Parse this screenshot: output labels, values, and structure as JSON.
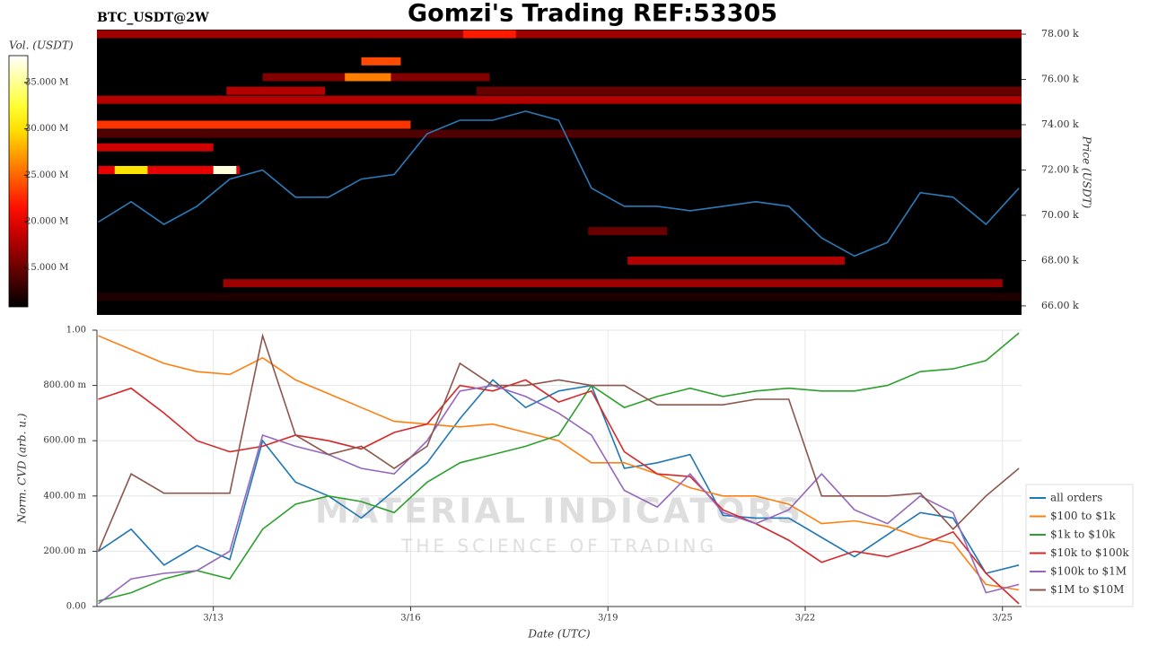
{
  "chart_data": [
    {
      "type": "heatmap",
      "title": "Gomzi's Trading REF:53305",
      "subtitle": "BTC_USDT@2W",
      "ylabel": "Price (USDT)",
      "xlim": [
        11.23,
        25.29
      ],
      "ylim": [
        65.6,
        78.2
      ],
      "yticks": [
        {
          "value": 66,
          "label": "66.00 k"
        },
        {
          "value": 68,
          "label": "68.00 k"
        },
        {
          "value": 70,
          "label": "70.00 k"
        },
        {
          "value": 72,
          "label": "72.00 k"
        },
        {
          "value": 74,
          "label": "74.00 k"
        },
        {
          "value": 76,
          "label": "76.00 k"
        },
        {
          "value": 78,
          "label": "78.00 k"
        }
      ],
      "colorbar": {
        "label": "Vol. (USDT)",
        "lim": [
          10.8,
          37.9
        ],
        "colormap": "hot",
        "ticks": [
          {
            "value": 15,
            "label": "15.000 M"
          },
          {
            "value": 20,
            "label": "20.000 M"
          },
          {
            "value": 25,
            "label": "25.000 M"
          },
          {
            "value": 30,
            "label": "30.000 M"
          },
          {
            "value": 35,
            "label": "35.000 M"
          }
        ]
      },
      "segments": [
        {
          "price": 78.0,
          "start": 11.23,
          "end": 25.29,
          "volume": 17
        },
        {
          "price": 78.0,
          "start": 16.8,
          "end": 17.6,
          "volume": 22
        },
        {
          "price": 76.8,
          "start": 15.25,
          "end": 15.85,
          "volume": 24
        },
        {
          "price": 76.1,
          "start": 13.75,
          "end": 17.2,
          "volume": 16
        },
        {
          "price": 76.1,
          "start": 15.0,
          "end": 15.7,
          "volume": 26
        },
        {
          "price": 75.5,
          "start": 13.2,
          "end": 14.7,
          "volume": 18
        },
        {
          "price": 75.5,
          "start": 17.0,
          "end": 25.29,
          "volume": 15
        },
        {
          "price": 75.1,
          "start": 11.23,
          "end": 25.29,
          "volume": 18
        },
        {
          "price": 74.0,
          "start": 11.23,
          "end": 16.0,
          "volume": 23
        },
        {
          "price": 73.6,
          "start": 11.23,
          "end": 25.29,
          "volume": 14
        },
        {
          "price": 73.0,
          "start": 11.23,
          "end": 13.0,
          "volume": 19
        },
        {
          "price": 72.0,
          "start": 11.25,
          "end": 13.4,
          "volume": 20
        },
        {
          "price": 72.0,
          "start": 11.5,
          "end": 12.0,
          "volume": 30
        },
        {
          "price": 72.0,
          "start": 13.0,
          "end": 13.35,
          "volume": 37
        },
        {
          "price": 69.3,
          "start": 18.7,
          "end": 19.9,
          "volume": 15
        },
        {
          "price": 68.0,
          "start": 19.3,
          "end": 22.6,
          "volume": 18
        },
        {
          "price": 67.0,
          "start": 13.15,
          "end": 25.0,
          "volume": 17
        },
        {
          "price": 66.4,
          "start": 11.23,
          "end": 25.29,
          "volume": 12
        }
      ],
      "price_line": {
        "color": "#2b7bba",
        "x": [
          11.25,
          11.75,
          12.25,
          12.75,
          13.25,
          13.75,
          14.25,
          14.75,
          15.25,
          15.75,
          16.25,
          16.75,
          17.25,
          17.75,
          18.25,
          18.75,
          19.25,
          19.75,
          20.25,
          20.75,
          21.25,
          21.75,
          22.25,
          22.75,
          23.25,
          23.75,
          24.25,
          24.75,
          25.25
        ],
        "values": [
          69.7,
          70.6,
          69.6,
          70.4,
          71.6,
          72.0,
          70.8,
          70.8,
          71.6,
          71.8,
          73.6,
          74.2,
          74.2,
          74.6,
          74.2,
          71.2,
          70.4,
          70.4,
          70.2,
          70.4,
          70.6,
          70.4,
          69.0,
          68.2,
          68.8,
          71.0,
          70.8,
          69.6,
          71.2
        ]
      }
    },
    {
      "type": "line",
      "xlabel": "Date (UTC)",
      "ylabel": "Norm. CVD (arb. u.)",
      "xlim": [
        11.23,
        25.29
      ],
      "xticks": [
        {
          "value": 13,
          "label": "3/13"
        },
        {
          "value": 16,
          "label": "3/16"
        },
        {
          "value": 19,
          "label": "3/19"
        },
        {
          "value": 22,
          "label": "3/22"
        },
        {
          "value": 25,
          "label": "3/25"
        }
      ],
      "ylim": [
        0,
        1
      ],
      "yticks": [
        {
          "value": 0,
          "label": "0.00"
        },
        {
          "value": 0.2,
          "label": "200.00 m"
        },
        {
          "value": 0.4,
          "label": "400.00 m"
        },
        {
          "value": 0.6,
          "label": "600.00 m"
        },
        {
          "value": 0.8,
          "label": "800.00 m"
        },
        {
          "value": 1,
          "label": "1.00"
        }
      ],
      "grid": true,
      "legend": "right",
      "watermark": [
        "MATERIAL INDICATORS",
        "THE SCIENCE OF TRADING"
      ],
      "x": [
        11.25,
        11.75,
        12.25,
        12.75,
        13.25,
        13.75,
        14.25,
        14.75,
        15.25,
        15.75,
        16.25,
        16.75,
        17.25,
        17.75,
        18.25,
        18.75,
        19.25,
        19.75,
        20.25,
        20.75,
        21.25,
        21.75,
        22.25,
        22.75,
        23.25,
        23.75,
        24.25,
        24.75,
        25.25
      ],
      "series": [
        {
          "name": "all orders",
          "color": "#1f77b4",
          "values": [
            0.2,
            0.28,
            0.15,
            0.22,
            0.17,
            0.6,
            0.45,
            0.4,
            0.32,
            0.42,
            0.52,
            0.68,
            0.82,
            0.72,
            0.78,
            0.8,
            0.5,
            0.52,
            0.55,
            0.33,
            0.32,
            0.32,
            0.25,
            0.18,
            0.26,
            0.34,
            0.32,
            0.12,
            0.15
          ]
        },
        {
          "name": "$100 to $1k",
          "color": "#ff7f0e",
          "values": [
            0.98,
            0.93,
            0.88,
            0.85,
            0.84,
            0.9,
            0.82,
            0.77,
            0.72,
            0.67,
            0.66,
            0.65,
            0.66,
            0.63,
            0.6,
            0.52,
            0.52,
            0.48,
            0.43,
            0.4,
            0.4,
            0.37,
            0.3,
            0.31,
            0.29,
            0.25,
            0.23,
            0.08,
            0.06
          ]
        },
        {
          "name": "$1k to $10k",
          "color": "#2ca02c",
          "values": [
            0.02,
            0.05,
            0.1,
            0.13,
            0.1,
            0.28,
            0.37,
            0.4,
            0.38,
            0.34,
            0.45,
            0.52,
            0.55,
            0.58,
            0.62,
            0.8,
            0.72,
            0.76,
            0.79,
            0.76,
            0.78,
            0.79,
            0.78,
            0.78,
            0.8,
            0.85,
            0.86,
            0.89,
            0.99
          ]
        },
        {
          "name": "$10k to $100k",
          "color": "#d62728",
          "values": [
            0.75,
            0.79,
            0.7,
            0.6,
            0.56,
            0.58,
            0.62,
            0.6,
            0.57,
            0.63,
            0.66,
            0.8,
            0.78,
            0.82,
            0.74,
            0.78,
            0.56,
            0.48,
            0.47,
            0.35,
            0.3,
            0.24,
            0.16,
            0.2,
            0.18,
            0.22,
            0.27,
            0.12,
            0.01
          ]
        },
        {
          "name": "$100k to $1M",
          "color": "#9467bd",
          "values": [
            0.01,
            0.1,
            0.12,
            0.13,
            0.2,
            0.62,
            0.58,
            0.55,
            0.5,
            0.48,
            0.6,
            0.78,
            0.8,
            0.76,
            0.7,
            0.62,
            0.42,
            0.36,
            0.48,
            0.34,
            0.3,
            0.35,
            0.48,
            0.35,
            0.3,
            0.4,
            0.34,
            0.05,
            0.08
          ]
        },
        {
          "name": "$1M to $10M",
          "color": "#8c564b",
          "values": [
            0.2,
            0.48,
            0.41,
            0.41,
            0.41,
            0.98,
            0.62,
            0.55,
            0.58,
            0.5,
            0.58,
            0.88,
            0.8,
            0.8,
            0.82,
            0.8,
            0.8,
            0.73,
            0.73,
            0.73,
            0.75,
            0.75,
            0.4,
            0.4,
            0.4,
            0.41,
            0.28,
            0.4,
            0.5
          ]
        }
      ]
    }
  ]
}
